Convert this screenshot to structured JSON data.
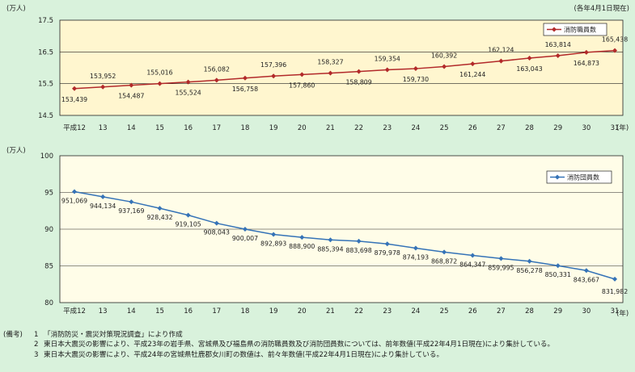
{
  "colors": {
    "background": "#d9f2dc",
    "plot1_fill": "#fff6cf",
    "plot2_fill": "#fffde8",
    "series1": "#b22a2a",
    "series2": "#3573b7"
  },
  "chart_data": [
    {
      "type": "line",
      "unit_label": "(万人)",
      "note_top_right": "(各年4月1日現在)",
      "x_unit": "(年)",
      "categories": [
        "平成12",
        "13",
        "14",
        "15",
        "16",
        "17",
        "18",
        "19",
        "20",
        "21",
        "22",
        "23",
        "24",
        "25",
        "26",
        "27",
        "28",
        "29",
        "30",
        "31"
      ],
      "series": [
        {
          "name": "消防職員数",
          "values": [
            153439,
            153952,
            154487,
            155016,
            155524,
            156082,
            156758,
            157396,
            157860,
            158327,
            158809,
            159354,
            159730,
            160392,
            161244,
            162124,
            163043,
            163814,
            164873,
            165438
          ],
          "labels": [
            "153,439",
            "153,952",
            "154,487",
            "155,016",
            "155,524",
            "156,082",
            "156,758",
            "157,396",
            "157,860",
            "158,327",
            "158,809",
            "159,354",
            "159,730",
            "160,392",
            "161,244",
            "162,124",
            "163,043",
            "163,814",
            "164,873",
            "165,438"
          ],
          "marker": "diamond"
        }
      ],
      "ylim": [
        14.5,
        17.5
      ],
      "yticks": [
        "14.5",
        "15.5",
        "16.5",
        "17.5"
      ],
      "grid": true,
      "legend": "top-right"
    },
    {
      "type": "line",
      "unit_label": "(万人)",
      "x_unit": "(年)",
      "categories": [
        "平成12",
        "13",
        "14",
        "15",
        "16",
        "17",
        "18",
        "19",
        "20",
        "21",
        "22",
        "23",
        "24",
        "25",
        "26",
        "27",
        "28",
        "29",
        "30",
        "31"
      ],
      "series": [
        {
          "name": "消防団員数",
          "values": [
            951069,
            944134,
            937169,
            928432,
            919105,
            908043,
            900007,
            892893,
            888900,
            885394,
            883698,
            879978,
            874193,
            868872,
            864347,
            859995,
            856278,
            850331,
            843667,
            831982
          ],
          "labels": [
            "951,069",
            "944,134",
            "937,169",
            "928,432",
            "919,105",
            "908,043",
            "900,007",
            "892,893",
            "888,900",
            "885,394",
            "883,698",
            "879,978",
            "874,193",
            "868,872",
            "864,347",
            "859,995",
            "856,278",
            "850,331",
            "843,667",
            "831,982"
          ],
          "marker": "diamond"
        }
      ],
      "ylim": [
        80,
        100
      ],
      "yticks": [
        "80",
        "85",
        "90",
        "95",
        "100"
      ],
      "grid": true,
      "legend": "top-right"
    }
  ],
  "notes": {
    "heading": "(備考)",
    "items": [
      {
        "num": "1",
        "text": "「消防防災・震災対策現況調査」により作成"
      },
      {
        "num": "2",
        "text": "東日本大震災の影響により、平成23年の岩手県、宮城県及び福島県の消防職員数及び消防団員数については、前年数値(平成22年4月1日現在)により集計している。"
      },
      {
        "num": "3",
        "text": "東日本大震災の影響により、平成24年の宮城県牡鹿郡女川町の数値は、前々年数値(平成22年4月1日現在)により集計している。"
      }
    ]
  }
}
